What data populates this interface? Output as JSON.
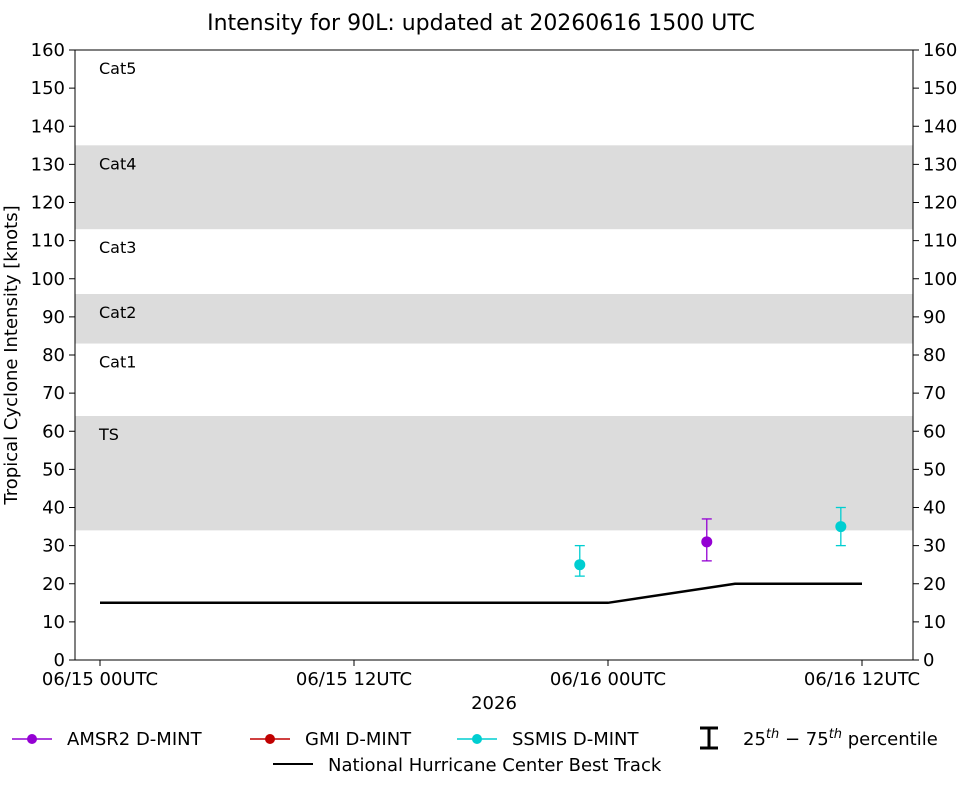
{
  "chart_data": {
    "type": "scatter",
    "title": "Intensity for 90L: updated at 20260616 1500 UTC",
    "xlabel": "2026",
    "ylabel": "Tropical Cyclone Intensity [knots]",
    "xlim": [
      "2026-06-15T00:00",
      "2026-06-16T12:00"
    ],
    "ylim": [
      0,
      160
    ],
    "yticks": [
      0,
      10,
      20,
      30,
      40,
      50,
      60,
      70,
      80,
      90,
      100,
      110,
      120,
      130,
      140,
      150,
      160
    ],
    "xticks": [
      {
        "x": "2026-06-15T00:00",
        "label": "06/15 00UTC"
      },
      {
        "x": "2026-06-15T12:00",
        "label": "06/15 12UTC"
      },
      {
        "x": "2026-06-16T00:00",
        "label": "06/16 00UTC"
      },
      {
        "x": "2026-06-16T12:00",
        "label": "06/16 12UTC"
      }
    ],
    "bands": [
      {
        "label": "TS",
        "from": 34,
        "to": 64,
        "shaded": true
      },
      {
        "label": "Cat1",
        "from": 64,
        "to": 83,
        "shaded": false
      },
      {
        "label": "Cat2",
        "from": 83,
        "to": 96,
        "shaded": true
      },
      {
        "label": "Cat3",
        "from": 96,
        "to": 113,
        "shaded": false
      },
      {
        "label": "Cat4",
        "from": 113,
        "to": 135,
        "shaded": true
      },
      {
        "label": "Cat5",
        "from": 135,
        "to": 160,
        "shaded": false
      }
    ],
    "series": [
      {
        "name": "AMSR2 D-MINT",
        "color": "#9400D3",
        "marker": "circle",
        "points": [
          {
            "x": "2026-06-16T04:40",
            "y": 31,
            "low": 26,
            "high": 37
          }
        ]
      },
      {
        "name": "GMI D-MINT",
        "color": "#C00000",
        "marker": "circle",
        "points": []
      },
      {
        "name": "SSMIS D-MINT",
        "color": "#00CED1",
        "marker": "circle",
        "points": [
          {
            "x": "2026-06-15T22:40",
            "y": 25,
            "low": 22,
            "high": 30
          },
          {
            "x": "2026-06-16T11:00",
            "y": 35,
            "low": 30,
            "high": 40
          }
        ]
      },
      {
        "name": "National Hurricane Center Best Track",
        "color": "#000000",
        "marker": "none",
        "points": [
          {
            "x": "2026-06-15T00:00",
            "y": 15
          },
          {
            "x": "2026-06-16T00:00",
            "y": 15
          },
          {
            "x": "2026-06-16T06:00",
            "y": 20
          },
          {
            "x": "2026-06-16T12:00",
            "y": 20
          }
        ]
      }
    ],
    "percentile_legend": {
      "prefix": "25",
      "sup1": "th",
      "middle": " − 75",
      "sup2": "th",
      "suffix": " percentile"
    },
    "band_color": "#dcdcdc"
  }
}
